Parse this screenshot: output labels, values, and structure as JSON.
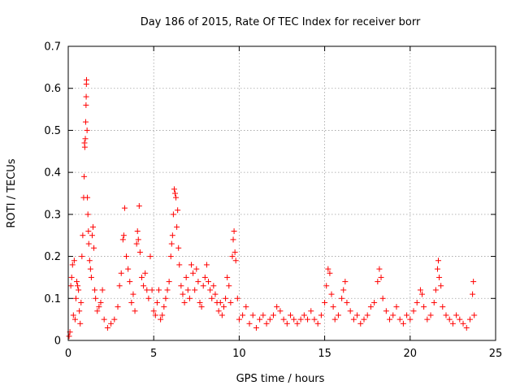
{
  "chart_data": {
    "type": "scatter",
    "title": "Day 186 of 2015, Rate Of TEC Index for receiver borr",
    "xlabel": "GPS time / hours",
    "ylabel": "ROTI / TECUs",
    "xlim": [
      0,
      25
    ],
    "ylim": [
      0,
      0.7
    ],
    "xticks": [
      0,
      5,
      10,
      15,
      20,
      25
    ],
    "yticks": [
      0,
      0.1,
      0.2,
      0.3,
      0.4,
      0.5,
      0.6,
      0.7
    ],
    "xtick_labels": [
      "0",
      "5",
      "10",
      "15",
      "20",
      "25"
    ],
    "ytick_labels": [
      "0",
      "0.1",
      "0.2",
      "0.3",
      "0.4",
      "0.5",
      "0.6",
      "0.7"
    ],
    "grid": true,
    "marker": "+",
    "color": "#ff0000",
    "series": [
      {
        "name": "ROTI",
        "points": [
          [
            0.05,
            0.01
          ],
          [
            0.1,
            0.02
          ],
          [
            0.15,
            0.13
          ],
          [
            0.2,
            0.15
          ],
          [
            0.25,
            0.18
          ],
          [
            0.3,
            0.06
          ],
          [
            0.35,
            0.19
          ],
          [
            0.4,
            0.05
          ],
          [
            0.45,
            0.1
          ],
          [
            0.5,
            0.14
          ],
          [
            0.55,
            0.13
          ],
          [
            0.6,
            0.12
          ],
          [
            0.65,
            0.07
          ],
          [
            0.7,
            0.04
          ],
          [
            0.75,
            0.09
          ],
          [
            0.8,
            0.2
          ],
          [
            0.85,
            0.25
          ],
          [
            0.9,
            0.34
          ],
          [
            0.93,
            0.39
          ],
          [
            0.95,
            0.47
          ],
          [
            0.97,
            0.46
          ],
          [
            1.0,
            0.48
          ],
          [
            1.02,
            0.52
          ],
          [
            1.04,
            0.56
          ],
          [
            1.05,
            0.58
          ],
          [
            1.06,
            0.61
          ],
          [
            1.07,
            0.62
          ],
          [
            1.1,
            0.5
          ],
          [
            1.12,
            0.34
          ],
          [
            1.15,
            0.3
          ],
          [
            1.18,
            0.26
          ],
          [
            1.2,
            0.23
          ],
          [
            1.25,
            0.19
          ],
          [
            1.3,
            0.17
          ],
          [
            1.35,
            0.15
          ],
          [
            1.4,
            0.25
          ],
          [
            1.45,
            0.27
          ],
          [
            1.5,
            0.22
          ],
          [
            1.55,
            0.12
          ],
          [
            1.6,
            0.1
          ],
          [
            1.7,
            0.07
          ],
          [
            1.8,
            0.08
          ],
          [
            1.9,
            0.09
          ],
          [
            2.0,
            0.12
          ],
          [
            2.1,
            0.05
          ],
          [
            2.3,
            0.03
          ],
          [
            2.5,
            0.04
          ],
          [
            2.7,
            0.05
          ],
          [
            2.9,
            0.08
          ],
          [
            3.0,
            0.13
          ],
          [
            3.1,
            0.16
          ],
          [
            3.2,
            0.24
          ],
          [
            3.25,
            0.25
          ],
          [
            3.3,
            0.315
          ],
          [
            3.4,
            0.2
          ],
          [
            3.5,
            0.17
          ],
          [
            3.6,
            0.14
          ],
          [
            3.7,
            0.09
          ],
          [
            3.8,
            0.11
          ],
          [
            3.9,
            0.07
          ],
          [
            4.0,
            0.23
          ],
          [
            4.05,
            0.26
          ],
          [
            4.1,
            0.24
          ],
          [
            4.15,
            0.32
          ],
          [
            4.2,
            0.21
          ],
          [
            4.3,
            0.15
          ],
          [
            4.4,
            0.13
          ],
          [
            4.5,
            0.16
          ],
          [
            4.6,
            0.12
          ],
          [
            4.7,
            0.1
          ],
          [
            4.8,
            0.2
          ],
          [
            4.9,
            0.12
          ],
          [
            5.0,
            0.07
          ],
          [
            5.1,
            0.06
          ],
          [
            5.2,
            0.09
          ],
          [
            5.3,
            0.12
          ],
          [
            5.4,
            0.05
          ],
          [
            5.5,
            0.06
          ],
          [
            5.6,
            0.08
          ],
          [
            5.7,
            0.1
          ],
          [
            5.8,
            0.12
          ],
          [
            5.9,
            0.14
          ],
          [
            6.0,
            0.2
          ],
          [
            6.05,
            0.23
          ],
          [
            6.1,
            0.25
          ],
          [
            6.15,
            0.3
          ],
          [
            6.2,
            0.36
          ],
          [
            6.25,
            0.35
          ],
          [
            6.3,
            0.34
          ],
          [
            6.35,
            0.27
          ],
          [
            6.4,
            0.31
          ],
          [
            6.45,
            0.22
          ],
          [
            6.5,
            0.18
          ],
          [
            6.6,
            0.13
          ],
          [
            6.7,
            0.11
          ],
          [
            6.8,
            0.09
          ],
          [
            6.9,
            0.15
          ],
          [
            7.0,
            0.12
          ],
          [
            7.1,
            0.1
          ],
          [
            7.2,
            0.18
          ],
          [
            7.3,
            0.16
          ],
          [
            7.4,
            0.12
          ],
          [
            7.5,
            0.17
          ],
          [
            7.6,
            0.14
          ],
          [
            7.7,
            0.09
          ],
          [
            7.8,
            0.08
          ],
          [
            7.9,
            0.13
          ],
          [
            8.0,
            0.15
          ],
          [
            8.1,
            0.18
          ],
          [
            8.2,
            0.14
          ],
          [
            8.3,
            0.12
          ],
          [
            8.4,
            0.1
          ],
          [
            8.5,
            0.13
          ],
          [
            8.6,
            0.11
          ],
          [
            8.7,
            0.09
          ],
          [
            8.8,
            0.07
          ],
          [
            8.9,
            0.09
          ],
          [
            9.0,
            0.06
          ],
          [
            9.1,
            0.08
          ],
          [
            9.2,
            0.1
          ],
          [
            9.3,
            0.15
          ],
          [
            9.4,
            0.13
          ],
          [
            9.5,
            0.09
          ],
          [
            9.6,
            0.2
          ],
          [
            9.65,
            0.24
          ],
          [
            9.7,
            0.26
          ],
          [
            9.75,
            0.21
          ],
          [
            9.8,
            0.19
          ],
          [
            9.9,
            0.1
          ],
          [
            10.0,
            0.05
          ],
          [
            10.2,
            0.06
          ],
          [
            10.4,
            0.08
          ],
          [
            10.6,
            0.04
          ],
          [
            10.8,
            0.06
          ],
          [
            11.0,
            0.03
          ],
          [
            11.2,
            0.05
          ],
          [
            11.4,
            0.06
          ],
          [
            11.6,
            0.04
          ],
          [
            11.8,
            0.05
          ],
          [
            12.0,
            0.06
          ],
          [
            12.2,
            0.08
          ],
          [
            12.4,
            0.07
          ],
          [
            12.6,
            0.05
          ],
          [
            12.8,
            0.04
          ],
          [
            13.0,
            0.06
          ],
          [
            13.2,
            0.05
          ],
          [
            13.4,
            0.04
          ],
          [
            13.6,
            0.05
          ],
          [
            13.8,
            0.06
          ],
          [
            14.0,
            0.05
          ],
          [
            14.2,
            0.07
          ],
          [
            14.4,
            0.05
          ],
          [
            14.6,
            0.04
          ],
          [
            14.8,
            0.06
          ],
          [
            15.0,
            0.09
          ],
          [
            15.1,
            0.13
          ],
          [
            15.2,
            0.17
          ],
          [
            15.3,
            0.16
          ],
          [
            15.4,
            0.11
          ],
          [
            15.5,
            0.08
          ],
          [
            15.6,
            0.05
          ],
          [
            15.8,
            0.06
          ],
          [
            16.0,
            0.1
          ],
          [
            16.1,
            0.12
          ],
          [
            16.2,
            0.14
          ],
          [
            16.3,
            0.09
          ],
          [
            16.5,
            0.07
          ],
          [
            16.7,
            0.05
          ],
          [
            16.9,
            0.06
          ],
          [
            17.1,
            0.04
          ],
          [
            17.3,
            0.05
          ],
          [
            17.5,
            0.06
          ],
          [
            17.7,
            0.08
          ],
          [
            17.9,
            0.09
          ],
          [
            18.1,
            0.14
          ],
          [
            18.2,
            0.17
          ],
          [
            18.3,
            0.15
          ],
          [
            18.4,
            0.1
          ],
          [
            18.6,
            0.07
          ],
          [
            18.8,
            0.05
          ],
          [
            19.0,
            0.06
          ],
          [
            19.2,
            0.08
          ],
          [
            19.4,
            0.05
          ],
          [
            19.6,
            0.04
          ],
          [
            19.8,
            0.06
          ],
          [
            20.0,
            0.05
          ],
          [
            20.2,
            0.07
          ],
          [
            20.4,
            0.09
          ],
          [
            20.6,
            0.12
          ],
          [
            20.7,
            0.11
          ],
          [
            20.8,
            0.08
          ],
          [
            21.0,
            0.05
          ],
          [
            21.2,
            0.06
          ],
          [
            21.4,
            0.09
          ],
          [
            21.5,
            0.12
          ],
          [
            21.6,
            0.17
          ],
          [
            21.65,
            0.19
          ],
          [
            21.7,
            0.15
          ],
          [
            21.8,
            0.13
          ],
          [
            21.9,
            0.08
          ],
          [
            22.1,
            0.06
          ],
          [
            22.3,
            0.05
          ],
          [
            22.5,
            0.04
          ],
          [
            22.7,
            0.06
          ],
          [
            22.9,
            0.05
          ],
          [
            23.1,
            0.04
          ],
          [
            23.3,
            0.03
          ],
          [
            23.5,
            0.05
          ],
          [
            23.65,
            0.11
          ],
          [
            23.7,
            0.14
          ],
          [
            23.75,
            0.06
          ]
        ]
      }
    ]
  }
}
